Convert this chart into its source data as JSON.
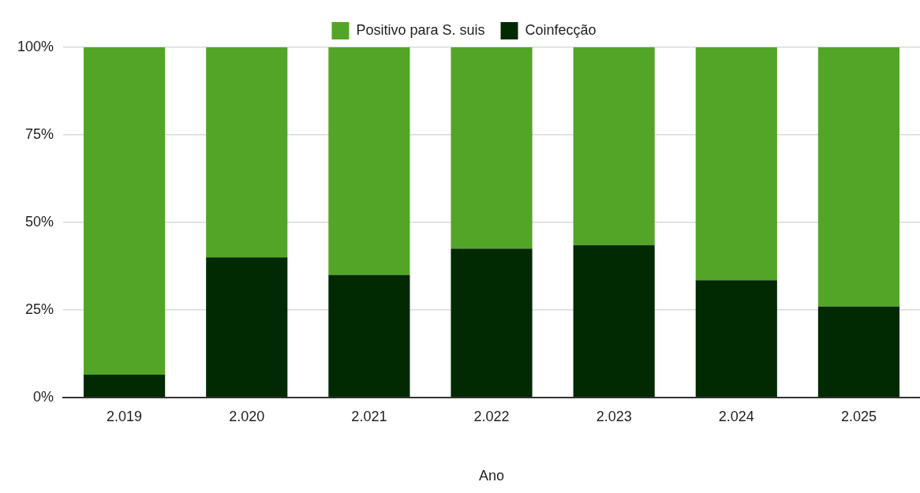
{
  "chart_data": {
    "type": "bar",
    "stacked": true,
    "xlabel": "Ano",
    "categories": [
      "2.019",
      "2.020",
      "2.021",
      "2.022",
      "2.023",
      "2.024",
      "2.025"
    ],
    "series": [
      {
        "name": "Coinfecção",
        "color": "#022a02",
        "values": [
          6.5,
          40,
          35,
          42.5,
          43.5,
          33.5,
          26
        ]
      },
      {
        "name": "Positivo para S. suis",
        "color": "#53a527",
        "values": [
          93.5,
          60,
          65,
          57.5,
          56.5,
          66.5,
          74
        ]
      }
    ],
    "ylim": [
      0,
      100
    ],
    "yticks": [
      {
        "value": 0,
        "label": "0%"
      },
      {
        "value": 25,
        "label": "25%"
      },
      {
        "value": 50,
        "label": "50%"
      },
      {
        "value": 75,
        "label": "75%"
      },
      {
        "value": 100,
        "label": "100%"
      }
    ],
    "grid": "y",
    "legend": "top"
  }
}
